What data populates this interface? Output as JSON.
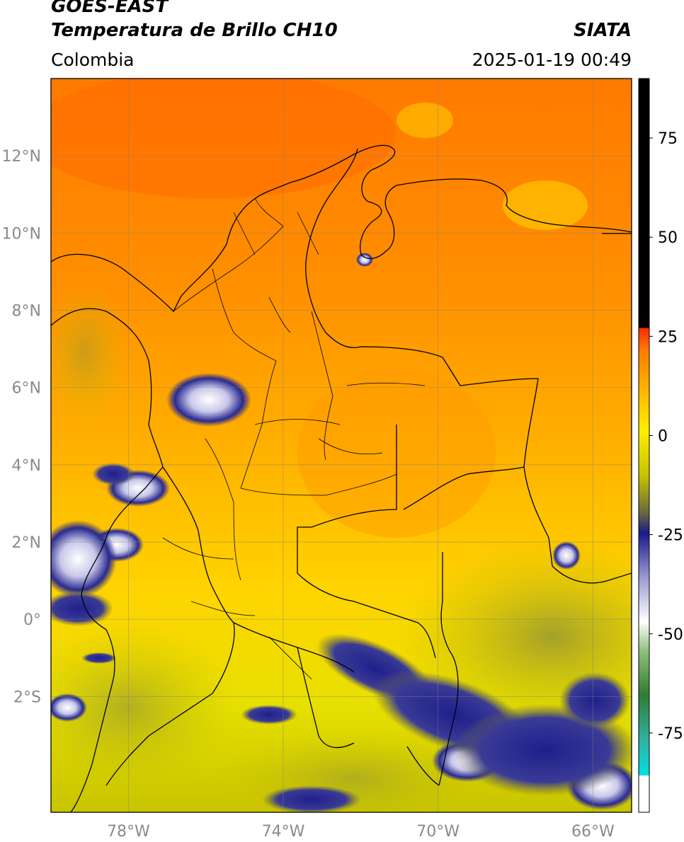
{
  "header": {
    "line1": "GOES-EAST",
    "line2": "Temperatura de Brillo CH10",
    "region": "Colombia",
    "source": "SIATA",
    "datetime": "2025-01-19 00:49"
  },
  "map": {
    "lon_range": [
      -80,
      -65
    ],
    "lat_range": [
      -5,
      14
    ],
    "lat_ticks": [
      {
        "value": 12,
        "label": "12°N"
      },
      {
        "value": 10,
        "label": "10°N"
      },
      {
        "value": 8,
        "label": "8°N"
      },
      {
        "value": 6,
        "label": "6°N"
      },
      {
        "value": 4,
        "label": "4°N"
      },
      {
        "value": 2,
        "label": "2°N"
      },
      {
        "value": 0,
        "label": "0°"
      },
      {
        "value": -2,
        "label": "2°S"
      }
    ],
    "lon_ticks": [
      {
        "value": -78,
        "label": "78°W"
      },
      {
        "value": -74,
        "label": "74°W"
      },
      {
        "value": -70,
        "label": "70°W"
      },
      {
        "value": -66,
        "label": "66°W"
      }
    ],
    "gridlines": true
  },
  "colorbar": {
    "ticks": [
      {
        "value": 75,
        "label": "75"
      },
      {
        "value": 50,
        "label": "50"
      },
      {
        "value": 25,
        "label": "25"
      },
      {
        "value": 0,
        "label": "0"
      },
      {
        "value": -25,
        "label": "-25"
      },
      {
        "value": -50,
        "label": "-50"
      },
      {
        "value": -75,
        "label": "-75"
      }
    ],
    "range": [
      -95,
      90
    ],
    "colors": {
      "black": "#000000",
      "red": "#ff2a00",
      "orange": "#ff8c00",
      "yellow": "#ffee00",
      "olive": "#7a7a20",
      "navy": "#1a1a8a",
      "white": "#ffffff",
      "green": "#2e7d32",
      "cyan": "#00e5e5"
    }
  }
}
